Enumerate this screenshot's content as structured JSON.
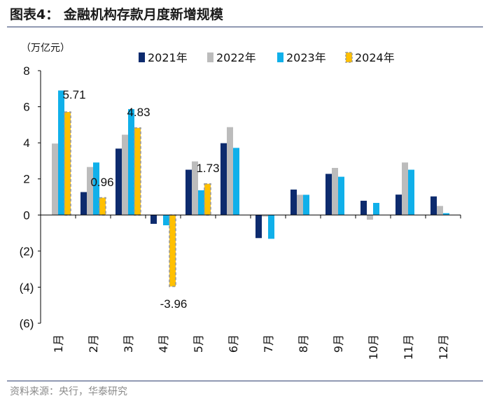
{
  "figure_title": "图表4：  金融机构存款月度新增规模",
  "source_note": "资料来源：央行，华泰研究",
  "colors": {
    "2021": "#0d2b6e",
    "2022": "#bcbcbc",
    "2023": "#10b0ea",
    "2024": "#ffc000",
    "rule": "#2f3f6f",
    "axis": "#000000"
  },
  "chart_data": {
    "type": "bar",
    "title": "金融机构存款月度新增规模",
    "unit_label": "（万亿元）",
    "categories": [
      "1月",
      "2月",
      "3月",
      "4月",
      "5月",
      "6月",
      "7月",
      "8月",
      "9月",
      "10月",
      "11月",
      "12月"
    ],
    "series": [
      {
        "name": "2021年",
        "values": [
          null,
          1.27,
          3.68,
          -0.49,
          2.51,
          3.98,
          -1.28,
          1.41,
          2.28,
          0.79,
          1.13,
          1.03
        ]
      },
      {
        "name": "2022年",
        "values": [
          3.96,
          2.66,
          4.45,
          -0.03,
          2.97,
          4.87,
          -0.09,
          1.12,
          2.61,
          -0.26,
          2.91,
          0.5
        ]
      },
      {
        "name": "2023年",
        "values": [
          6.9,
          2.91,
          5.87,
          -0.57,
          1.37,
          3.72,
          -1.32,
          1.12,
          2.12,
          0.67,
          2.51,
          0.1
        ]
      },
      {
        "name": "2024年",
        "values": [
          5.71,
          0.96,
          4.83,
          -3.96,
          1.73,
          null,
          null,
          null,
          null,
          null,
          null,
          null
        ]
      }
    ],
    "data_labels": [
      {
        "series": "2024年",
        "category": "1月",
        "text": "5.71"
      },
      {
        "series": "2024年",
        "category": "2月",
        "text": "0.96"
      },
      {
        "series": "2024年",
        "category": "3月",
        "text": "4.83"
      },
      {
        "series": "2024年",
        "category": "4月",
        "text": "-3.96"
      },
      {
        "series": "2024年",
        "category": "5月",
        "text": "1.73"
      }
    ],
    "yticks": [
      {
        "value": 8,
        "label": "8"
      },
      {
        "value": 6,
        "label": "6"
      },
      {
        "value": 4,
        "label": "4"
      },
      {
        "value": 2,
        "label": "2"
      },
      {
        "value": 0,
        "label": "0"
      },
      {
        "value": -2,
        "label": "(2)"
      },
      {
        "value": -4,
        "label": "(4)"
      },
      {
        "value": -6,
        "label": "(6)"
      }
    ],
    "ylim": [
      -6,
      8
    ],
    "legend_position": "top",
    "grid": false
  }
}
